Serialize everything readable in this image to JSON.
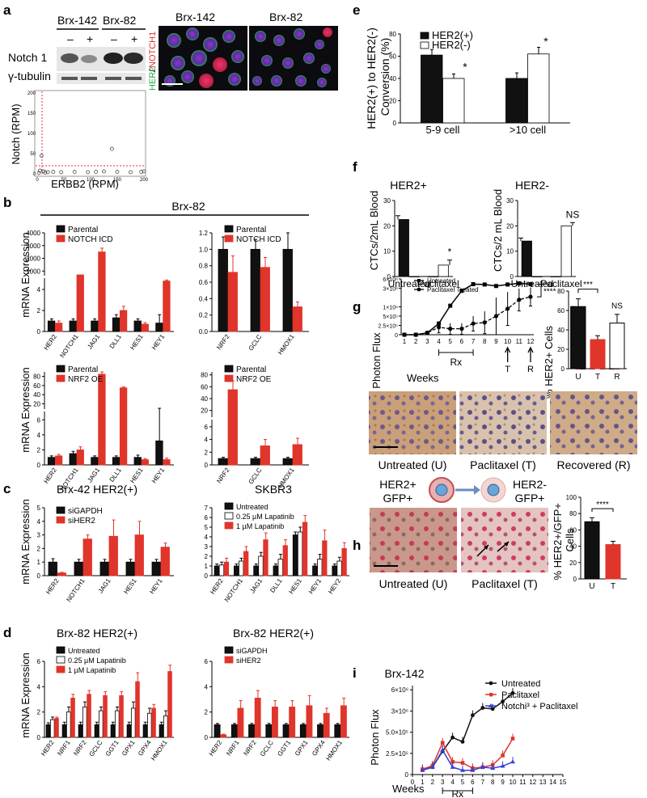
{
  "panel_letters": [
    "a",
    "b",
    "c",
    "d",
    "e",
    "f",
    "g",
    "h",
    "i"
  ],
  "colors": {
    "black": "#111111",
    "red": "#e0352b",
    "white": "#ffffff",
    "blue": "#3440d8"
  },
  "a": {
    "lanes": [
      "Brx-142",
      "Brx-82"
    ],
    "lane_signs": [
      "–",
      "+",
      "–",
      "+"
    ],
    "rows": [
      "Notch 1",
      "γ-tubulin"
    ],
    "image_titles": [
      "Brx-142",
      "Brx-82"
    ],
    "stain_her2": "HER2",
    "stain_notch": "NOTCH1",
    "scatter": {
      "xlabel": "ERBB2 (RPM)",
      "ylabel": "Notch (RPM)",
      "xticks": [
        "0",
        "50",
        "100",
        "150",
        "200"
      ],
      "yticks": [
        "0",
        "50",
        "100",
        "150",
        "200"
      ]
    }
  },
  "b": {
    "title": "Brx-82",
    "ylabel": "mRNA Expression",
    "charts": [
      {
        "legend": [
          "Parental",
          "NOTCH ICD"
        ],
        "categories": [
          "HER2",
          "NOTCH1",
          "JAG1",
          "DLL1",
          "HES1",
          "HEY1"
        ],
        "values": [
          [
            1,
            1,
            1,
            1.3,
            1,
            0.8
          ],
          [
            0.8,
            5.2,
            2500,
            2,
            0.7,
            4.8
          ]
        ],
        "err": [
          [
            0.2,
            0.2,
            0.2,
            0.3,
            0.2,
            0.8
          ],
          [
            0.2,
            0.2,
            300,
            0.4,
            0.15,
            0.1
          ]
        ],
        "upper_ticks": [
          "1000",
          "2000",
          "3000",
          "4000"
        ],
        "lower_ticks": [
          "0",
          "2",
          "4"
        ]
      },
      {
        "legend": [
          "Parental",
          "NOTCH ICD"
        ],
        "categories": [
          "NRF2",
          "GCLC",
          "HMOX1"
        ],
        "values": [
          [
            1,
            1,
            1
          ],
          [
            0.72,
            0.78,
            0.3
          ]
        ],
        "err": [
          [
            0.15,
            0.12,
            0.2
          ],
          [
            0.2,
            0.12,
            0.06
          ]
        ],
        "ticks": [
          "0.0",
          "0.2",
          "0.4",
          "0.6",
          "0.8",
          "1.0",
          "1.2"
        ]
      },
      {
        "legend": [
          "Parental",
          "NRF2 OE"
        ],
        "categories": [
          "HER2",
          "NOTCH1",
          "JAG1",
          "DLL1",
          "HES1",
          "HEY1"
        ],
        "values": [
          [
            1,
            1.5,
            1,
            1,
            1,
            3.2
          ],
          [
            1.2,
            2,
            85,
            55,
            0.7,
            0.7
          ]
        ],
        "err": [
          [
            0.2,
            0.3,
            0.2,
            0.2,
            0.3,
            4.5
          ],
          [
            0.2,
            0.4,
            10,
            2,
            0.15,
            0.2
          ]
        ],
        "upper_ticks": [
          "20",
          "40",
          "60",
          "80"
        ],
        "lower_ticks": [
          "0",
          "2",
          "4",
          "6"
        ]
      },
      {
        "legend": [
          "Parental",
          "NRF2 OE"
        ],
        "categories": [
          "NRF2",
          "GCLC",
          "HMOX1"
        ],
        "values": [
          [
            1,
            1,
            1
          ],
          [
            55,
            3,
            3.2
          ]
        ],
        "err": [
          [
            0.2,
            0.2,
            0.2
          ],
          [
            15,
            1,
            1
          ]
        ],
        "upper_ticks": [
          "20",
          "40",
          "60",
          "80"
        ],
        "lower_ticks": [
          "0",
          "2",
          "4",
          "6"
        ]
      }
    ]
  },
  "c": {
    "ylabel": "mRNA Expression",
    "charts": [
      {
        "title": "Brx-42 HER2(+)",
        "legend": [
          "siGAPDH",
          "siHER2"
        ],
        "categories": [
          "HER2",
          "NOTCH1",
          "JAG1",
          "HES1",
          "HEY1"
        ],
        "values": [
          [
            1,
            1,
            1,
            1,
            1
          ],
          [
            0.2,
            2.7,
            2.9,
            3,
            2.1
          ]
        ],
        "err": [
          [
            0.25,
            0.2,
            0.2,
            0.2,
            0.2
          ],
          [
            0.05,
            0.3,
            1.2,
            1,
            0.3
          ]
        ],
        "ticks": [
          "0",
          "1",
          "2",
          "3",
          "4",
          "5"
        ]
      },
      {
        "title": "SKBR3",
        "legend": [
          "Untreated",
          "0.25 µM Lapatinib",
          "1 µM Lapatinib"
        ],
        "categories": [
          "HER2",
          "NOTCH1",
          "JAG1",
          "DLL1",
          "HES1",
          "HEY1",
          "HEY2"
        ],
        "values": [
          [
            1,
            1,
            1,
            1,
            4.2,
            1,
            1
          ],
          [
            1.1,
            1.5,
            2,
            1.7,
            4.5,
            1.7,
            1.5
          ],
          [
            1.4,
            2.5,
            3.7,
            3.1,
            5.5,
            3.6,
            2.8
          ]
        ],
        "err": [
          [
            0.2,
            0.2,
            0.2,
            0.2,
            0.3,
            0.2,
            0.2
          ],
          [
            0.3,
            0.3,
            0.4,
            0.5,
            0.5,
            0.5,
            0.4
          ],
          [
            0.4,
            0.5,
            0.7,
            0.6,
            0.7,
            1.1,
            0.6
          ]
        ],
        "ticks": [
          "0",
          "1",
          "2",
          "3",
          "4",
          "5",
          "6",
          "7"
        ]
      }
    ]
  },
  "d": {
    "ylabel": "mRNA Expression",
    "charts": [
      {
        "title": "Brx-82 HER2(+)",
        "legend": [
          "Untreated",
          "0.25 µM Lapatinib",
          "1 µM Lapatinib"
        ],
        "categories": [
          "HER2",
          "NRF1",
          "NRF2",
          "GCLC",
          "GGT1",
          "GPX1",
          "GPX4",
          "HMOX1"
        ],
        "values": [
          [
            1,
            1,
            1,
            1,
            1,
            1,
            1,
            1
          ],
          [
            1.4,
            2,
            2.4,
            2.1,
            2.1,
            2.3,
            1.9,
            1.7
          ],
          [
            1.5,
            3.1,
            3.4,
            3.3,
            3.3,
            4.4,
            2.3,
            5.2
          ]
        ],
        "err": [
          [
            0.15,
            0.2,
            0.2,
            0.2,
            0.2,
            0.2,
            0.2,
            0.2
          ],
          [
            0.2,
            0.4,
            0.4,
            0.3,
            0.3,
            0.5,
            0.4,
            0.4
          ],
          [
            0.1,
            0.3,
            0.3,
            0.3,
            0.3,
            0.7,
            0.3,
            0.5
          ]
        ],
        "ticks": [
          "0",
          "2",
          "4",
          "6"
        ]
      },
      {
        "title": "Brx-82 HER2(+)",
        "legend": [
          "siGAPDH",
          "siHER2"
        ],
        "categories": [
          "HER2",
          "NRF1",
          "NRF2",
          "GCLC",
          "GGT1",
          "GPX1",
          "GPX4",
          "HMOX1"
        ],
        "values": [
          [
            1,
            1,
            1,
            1,
            1,
            1,
            1,
            1
          ],
          [
            0.2,
            2.3,
            3.1,
            2.4,
            2.4,
            2.5,
            1.9,
            2.5
          ]
        ],
        "err": [
          [
            0.1,
            0.1,
            0.1,
            0.1,
            0.1,
            0.1,
            0.1,
            0.1
          ],
          [
            0.05,
            0.6,
            0.6,
            0.5,
            0.5,
            0.8,
            0.4,
            0.6
          ]
        ],
        "ticks": [
          "0",
          "2",
          "4",
          "6"
        ]
      }
    ]
  },
  "e": {
    "ylabel": "HER2(+) to HER2(-) Conversion (%)",
    "legend": [
      "HER2(+)",
      "HER2(-)"
    ],
    "categories": [
      "5-9 cell",
      ">10 cell"
    ],
    "values": [
      [
        61,
        40
      ],
      [
        40,
        62
      ]
    ],
    "err": [
      [
        5,
        4
      ],
      [
        5,
        6
      ]
    ],
    "ticks": [
      "0",
      "20",
      "40",
      "60",
      "80"
    ],
    "star": "*"
  },
  "f": {
    "charts": [
      {
        "title": "HER2+",
        "ylabel": "CTCs/2mL Blood",
        "categories": [
          "Untreated",
          "Paclitaxel"
        ],
        "values": [
          22.5,
          4.5
        ],
        "err": [
          1.5,
          2
        ],
        "ticks": [
          "0",
          "10",
          "20",
          "30"
        ],
        "sig": "*"
      },
      {
        "title": "HER2-",
        "ylabel": "CTCs/2 mL Blood",
        "categories": [
          "Untreated",
          "Paclitaxel"
        ],
        "values": [
          14,
          20
        ],
        "err": [
          1.2,
          1.3
        ],
        "ticks": [
          "0",
          "10",
          "20",
          "30"
        ],
        "sig": "NS"
      }
    ]
  },
  "g": {
    "line": {
      "ylabel": "Photon Flux",
      "xlabel": "Weeks",
      "legend": [
        "Untreated",
        "Paclitaxel Treated"
      ],
      "x": [
        1,
        2,
        3,
        4,
        5,
        6,
        7,
        8,
        9,
        10,
        11,
        12
      ],
      "untreated": [
        0,
        0,
        0.05,
        0.3,
        0.78,
        1.18,
        1.36,
        1.35,
        1.31,
        1.35,
        1.38,
        1.36
      ],
      "treated": [
        0,
        0,
        0.05,
        0.2,
        0.16,
        0.16,
        0.3,
        0.33,
        0.5,
        0.7,
        0.94,
        1.02
      ],
      "treated_err": [
        0,
        0,
        0.05,
        0.15,
        0.15,
        0.15,
        0.2,
        0.3,
        0.5,
        0.45,
        0.3,
        0.25
      ],
      "yticks": [
        "0",
        "2.5×10⁵",
        "5×10⁵",
        "1×10⁶",
        "3×10⁶",
        "6×10⁶"
      ],
      "rx": "Rx",
      "markT": "T",
      "markR": "R",
      "sig": "****"
    },
    "bar": {
      "ylabel": "% HER2+ Cells",
      "categories": [
        "U",
        "T",
        "R"
      ],
      "values": [
        64,
        30,
        47
      ],
      "err": [
        8,
        4,
        9
      ],
      "ticks": [
        "0",
        "20",
        "40",
        "60",
        "80"
      ],
      "sig1": "***",
      "sig2": "NS"
    },
    "images": [
      "Untreated  (U)",
      "Paclitaxel  (T)",
      "Recovered  (R)"
    ]
  },
  "h": {
    "diagram": {
      "left": "HER2+\nGFP+",
      "right": "HER2-\nGFP+"
    },
    "images": [
      "Untreated (U)",
      "Paclitaxel (T)"
    ],
    "bar": {
      "ylabel": "% HER2+/GFP+ Cells",
      "categories": [
        "U",
        "T"
      ],
      "values": [
        70,
        42
      ],
      "err": [
        5,
        4
      ],
      "ticks": [
        "0",
        "20",
        "40",
        "60",
        "80",
        "100"
      ],
      "sig": "****"
    }
  },
  "i": {
    "title": "Brx-142",
    "ylabel": "Photon Flux",
    "xlabel": "Weeks",
    "rx": "Rx",
    "legend": [
      "Untreated",
      "Paclitaxel",
      "Notchi³ + Paclitaxel"
    ],
    "xticks": [
      "0",
      "1",
      "2",
      "3",
      "4",
      "5",
      "6",
      "7",
      "8",
      "9",
      "10",
      "11",
      "12",
      "13",
      "14",
      "15"
    ],
    "yticks": [
      "0",
      "2.5×10⁵",
      "5.0×10⁵",
      "3×10⁶",
      "6×10⁶"
    ],
    "x": [
      1,
      2,
      3,
      4,
      5,
      6,
      7,
      8,
      9,
      10
    ],
    "untreated": [
      0.22,
      0.35,
      1.1,
      1.75,
      1.55,
      2.8,
      3.15,
      3.1,
      3.45,
      3.85
    ],
    "paclitaxel": [
      0.25,
      0.42,
      1.5,
      0.6,
      0.55,
      0.3,
      0.35,
      0.45,
      0.9,
      1.7
    ],
    "notchi": [
      0.2,
      0.35,
      1.15,
      0.35,
      0.2,
      0.2,
      0.35,
      0.3,
      0.4,
      0.6
    ]
  }
}
